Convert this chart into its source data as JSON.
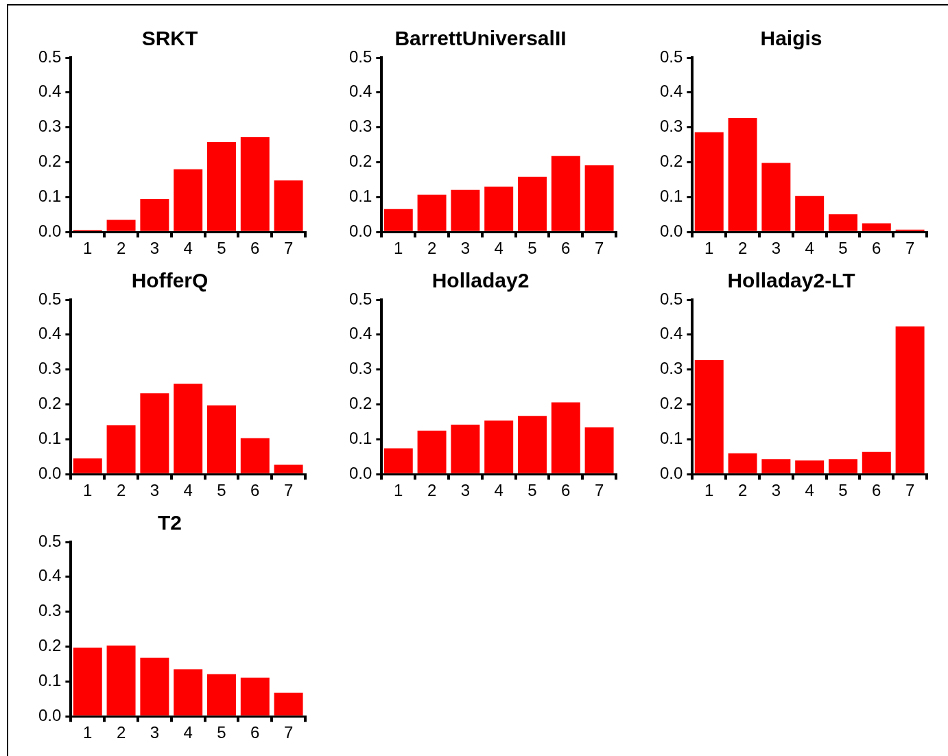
{
  "chart_data": [
    {
      "type": "bar",
      "title": "SRKT",
      "categories": [
        "1",
        "2",
        "3",
        "4",
        "5",
        "6",
        "7"
      ],
      "values": [
        0.006,
        0.035,
        0.095,
        0.18,
        0.258,
        0.272,
        0.148
      ],
      "color": "#ff0000",
      "ylim": [
        0,
        0.5
      ],
      "yticks": [
        {
          "value": 0,
          "label": "0.0"
        },
        {
          "value": 0.1,
          "label": "0.1"
        },
        {
          "value": 0.2,
          "label": "0.2"
        },
        {
          "value": 0.3,
          "label": "0.3"
        },
        {
          "value": 0.4,
          "label": "0.4"
        },
        {
          "value": 0.5,
          "label": "0.5"
        }
      ]
    },
    {
      "type": "bar",
      "title": "BarrettUniversalII",
      "categories": [
        "1",
        "2",
        "3",
        "4",
        "5",
        "6",
        "7"
      ],
      "values": [
        0.066,
        0.107,
        0.121,
        0.13,
        0.158,
        0.218,
        0.191
      ],
      "color": "#ff0000",
      "ylim": [
        0,
        0.5
      ],
      "yticks": [
        {
          "value": 0,
          "label": "0.0"
        },
        {
          "value": 0.1,
          "label": "0.1"
        },
        {
          "value": 0.2,
          "label": "0.2"
        },
        {
          "value": 0.3,
          "label": "0.3"
        },
        {
          "value": 0.4,
          "label": "0.4"
        },
        {
          "value": 0.5,
          "label": "0.5"
        }
      ]
    },
    {
      "type": "bar",
      "title": "Haigis",
      "categories": [
        "1",
        "2",
        "3",
        "4",
        "5",
        "6",
        "7"
      ],
      "values": [
        0.286,
        0.327,
        0.198,
        0.103,
        0.051,
        0.025,
        0.007
      ],
      "color": "#ff0000",
      "ylim": [
        0,
        0.5
      ],
      "yticks": [
        {
          "value": 0,
          "label": "0.0"
        },
        {
          "value": 0.1,
          "label": "0.1"
        },
        {
          "value": 0.2,
          "label": "0.2"
        },
        {
          "value": 0.3,
          "label": "0.3"
        },
        {
          "value": 0.4,
          "label": "0.4"
        },
        {
          "value": 0.5,
          "label": "0.5"
        }
      ]
    },
    {
      "type": "bar",
      "title": "HofferQ",
      "categories": [
        "1",
        "2",
        "3",
        "4",
        "5",
        "6",
        "7"
      ],
      "values": [
        0.045,
        0.14,
        0.232,
        0.259,
        0.197,
        0.103,
        0.027
      ],
      "color": "#ff0000",
      "ylim": [
        0,
        0.5
      ],
      "yticks": [
        {
          "value": 0,
          "label": "0.0"
        },
        {
          "value": 0.1,
          "label": "0.1"
        },
        {
          "value": 0.2,
          "label": "0.2"
        },
        {
          "value": 0.3,
          "label": "0.3"
        },
        {
          "value": 0.4,
          "label": "0.4"
        },
        {
          "value": 0.5,
          "label": "0.5"
        }
      ]
    },
    {
      "type": "bar",
      "title": "Holladay2",
      "categories": [
        "1",
        "2",
        "3",
        "4",
        "5",
        "6",
        "7"
      ],
      "values": [
        0.074,
        0.125,
        0.142,
        0.154,
        0.167,
        0.206,
        0.134
      ],
      "color": "#ff0000",
      "ylim": [
        0,
        0.5
      ],
      "yticks": [
        {
          "value": 0,
          "label": "0.0"
        },
        {
          "value": 0.1,
          "label": "0.1"
        },
        {
          "value": 0.2,
          "label": "0.2"
        },
        {
          "value": 0.3,
          "label": "0.3"
        },
        {
          "value": 0.4,
          "label": "0.4"
        },
        {
          "value": 0.5,
          "label": "0.5"
        }
      ]
    },
    {
      "type": "bar",
      "title": "Holladay2-LT",
      "categories": [
        "1",
        "2",
        "3",
        "4",
        "5",
        "6",
        "7"
      ],
      "values": [
        0.327,
        0.06,
        0.043,
        0.039,
        0.043,
        0.064,
        0.424
      ],
      "color": "#ff0000",
      "ylim": [
        0,
        0.5
      ],
      "yticks": [
        {
          "value": 0,
          "label": "0.0"
        },
        {
          "value": 0.1,
          "label": "0.1"
        },
        {
          "value": 0.2,
          "label": "0.2"
        },
        {
          "value": 0.3,
          "label": "0.3"
        },
        {
          "value": 0.4,
          "label": "0.4"
        },
        {
          "value": 0.5,
          "label": "0.5"
        }
      ]
    },
    {
      "type": "bar",
      "title": "T2",
      "categories": [
        "1",
        "2",
        "3",
        "4",
        "5",
        "6",
        "7"
      ],
      "values": [
        0.197,
        0.203,
        0.168,
        0.135,
        0.121,
        0.111,
        0.068
      ],
      "color": "#ff0000",
      "ylim": [
        0,
        0.5
      ],
      "yticks": [
        {
          "value": 0,
          "label": "0.0"
        },
        {
          "value": 0.1,
          "label": "0.1"
        },
        {
          "value": 0.2,
          "label": "0.2"
        },
        {
          "value": 0.3,
          "label": "0.3"
        },
        {
          "value": 0.4,
          "label": "0.4"
        },
        {
          "value": 0.5,
          "label": "0.5"
        }
      ]
    }
  ]
}
